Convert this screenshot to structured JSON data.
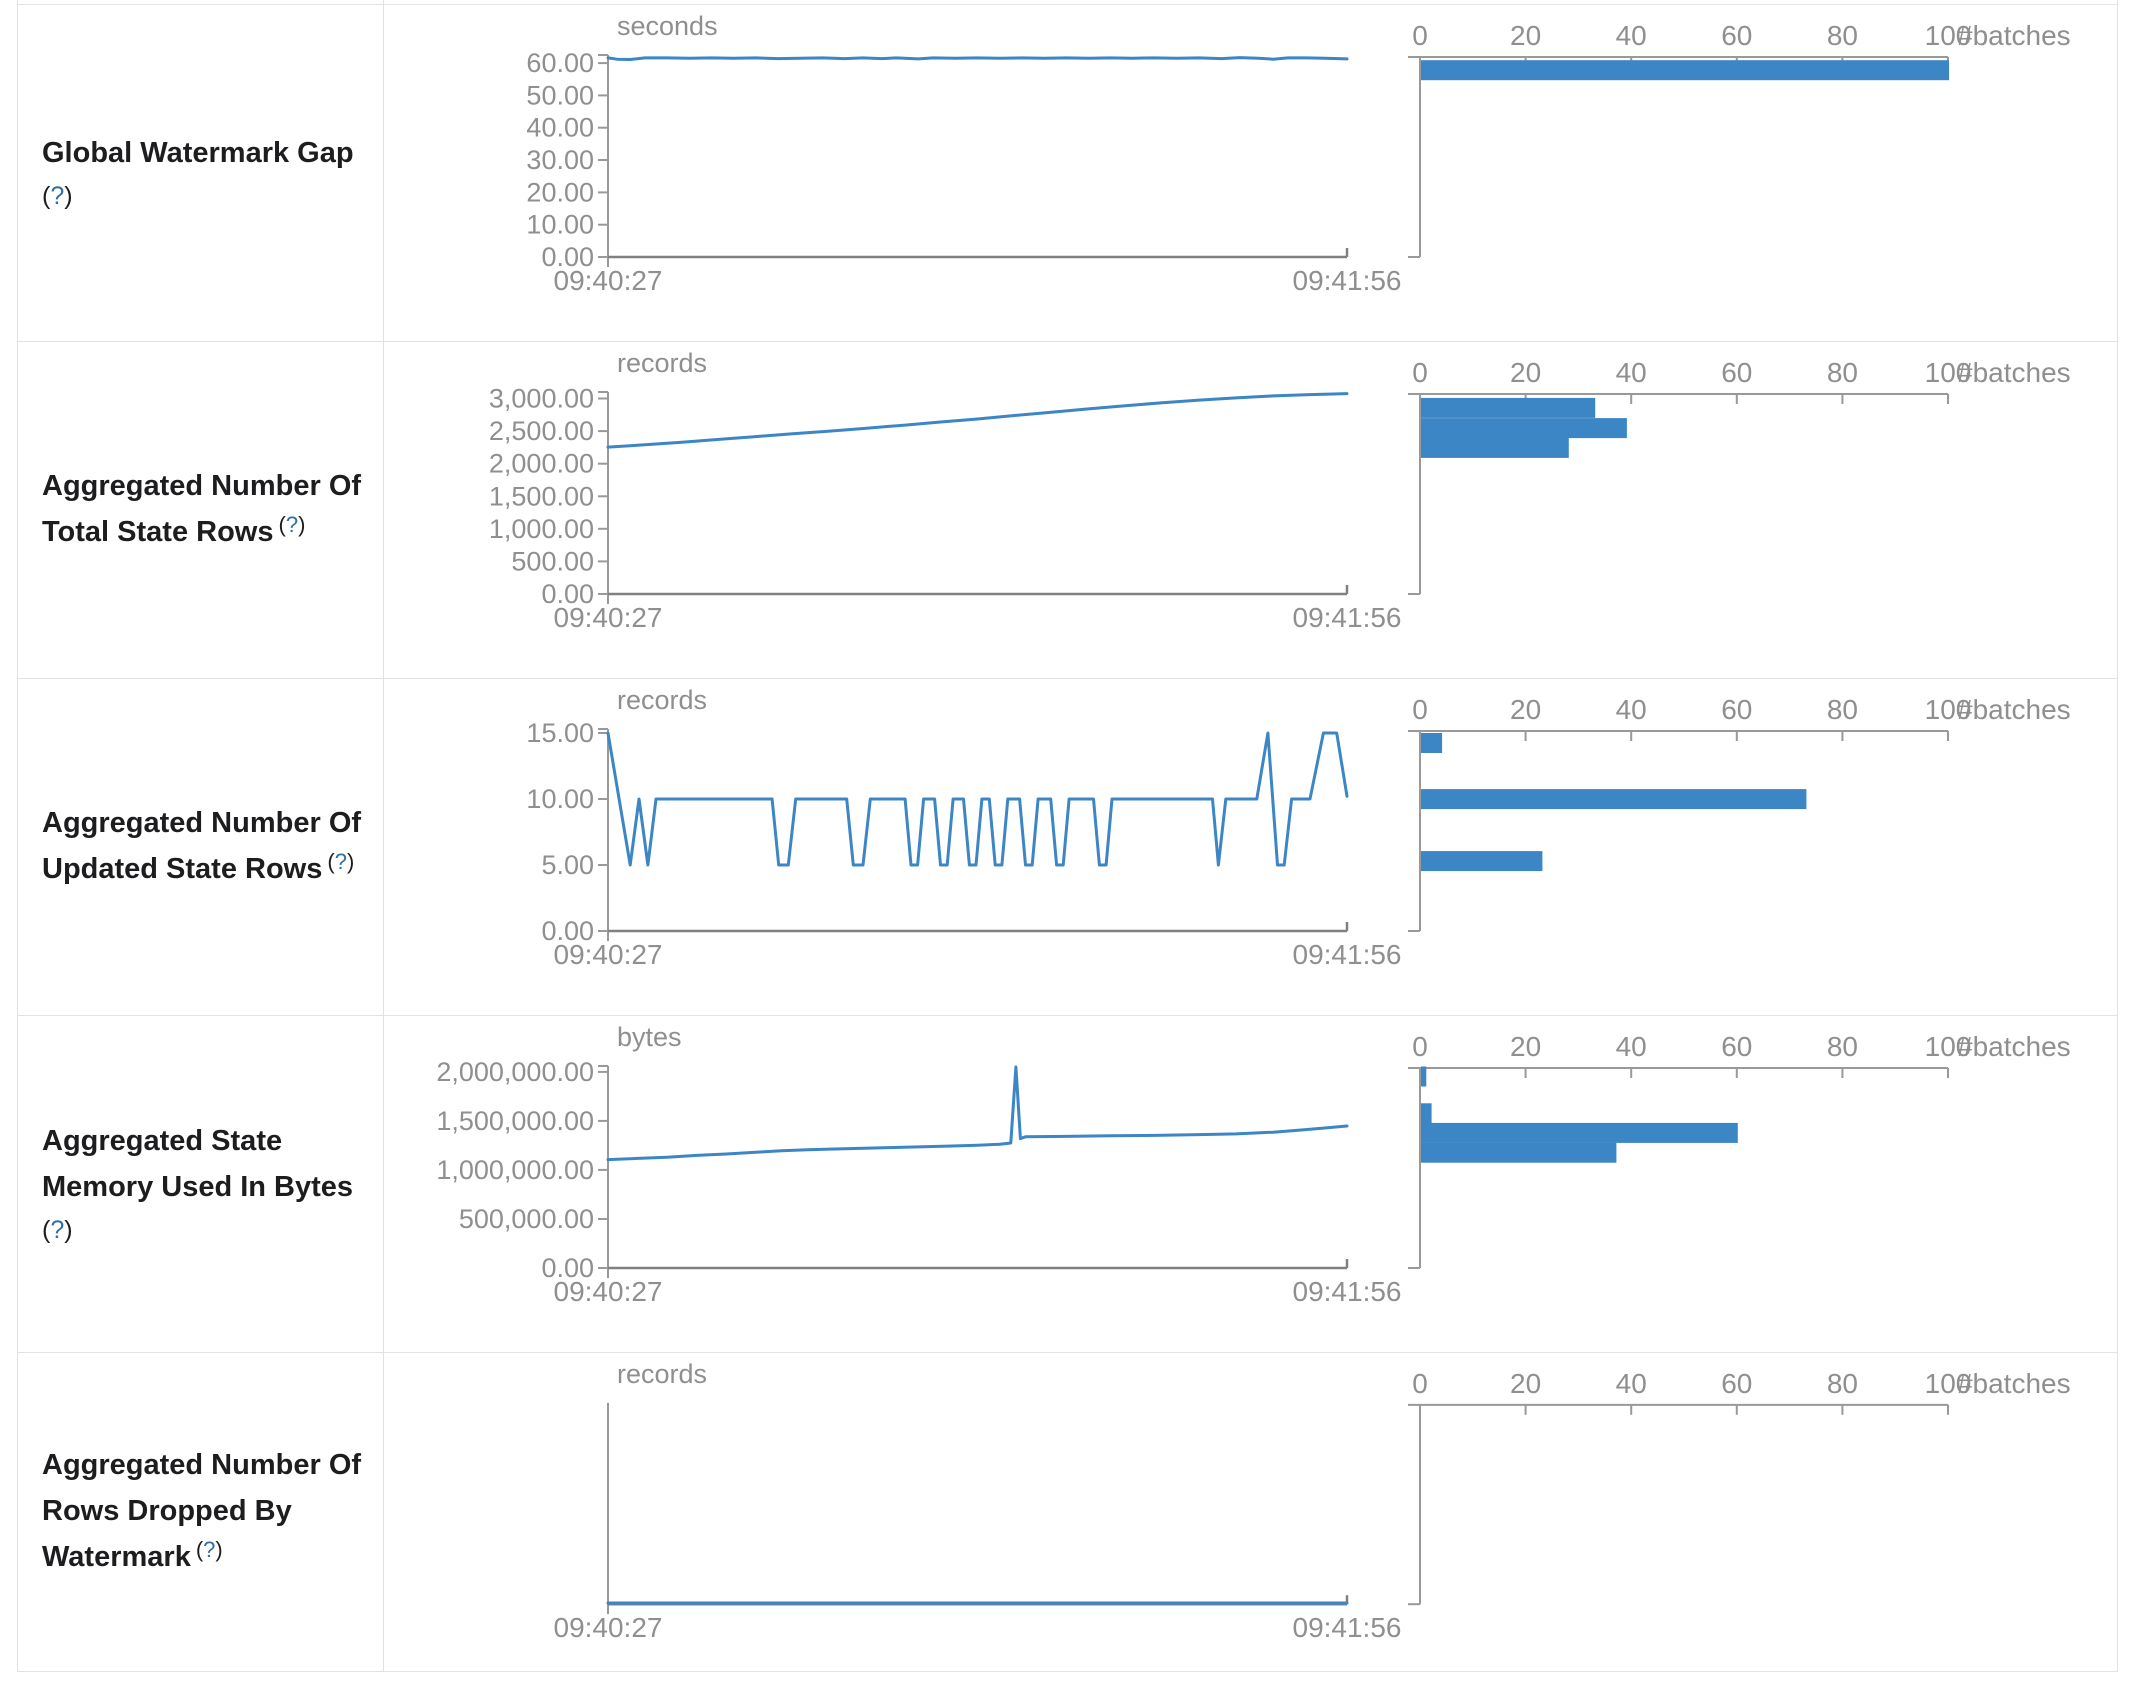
{
  "colors": {
    "series_blue": "#3c86c5",
    "histogram_bar_blue": "#3c86c5",
    "axis_gray": "#999999",
    "baseline_gray": "#808080",
    "tick_text_gray": "#8f8f8f",
    "label_text": "#1d1d1f",
    "help_blue": "#2f6fa7",
    "border_gray": "#dfe2e6"
  },
  "help": {
    "open": "(",
    "q": "?",
    "close": ")"
  },
  "time_axis": {
    "start_label": "09:40:27",
    "end_label": "09:41:56"
  },
  "batches_axis": {
    "tick_labels": [
      "0",
      "20",
      "40",
      "60",
      "80",
      "100"
    ],
    "tick_values": [
      0,
      20,
      40,
      60,
      80,
      100
    ],
    "max": 100,
    "unit_label": "#batches"
  },
  "rows": [
    {
      "id": "global-watermark-gap",
      "label_lines": [
        "Global Watermark Gap"
      ],
      "help_inline": false,
      "unit": "seconds",
      "chart_type": "line",
      "y_axis": {
        "max_draw": 62.5,
        "ticks": [
          {
            "value": 60,
            "label": "60.00"
          },
          {
            "value": 50,
            "label": "50.00"
          },
          {
            "value": 40,
            "label": "40.00"
          },
          {
            "value": 30,
            "label": "30.00"
          },
          {
            "value": 20,
            "label": "20.00"
          },
          {
            "value": 10,
            "label": "10.00"
          },
          {
            "value": 0,
            "label": "0.00"
          }
        ]
      },
      "timeline": [
        [
          0,
          61.6
        ],
        [
          0.012,
          61.2
        ],
        [
          0.03,
          61.1
        ],
        [
          0.05,
          61.6
        ],
        [
          0.08,
          61.6
        ],
        [
          0.11,
          61.5
        ],
        [
          0.14,
          61.6
        ],
        [
          0.17,
          61.5
        ],
        [
          0.2,
          61.6
        ],
        [
          0.23,
          61.4
        ],
        [
          0.26,
          61.5
        ],
        [
          0.29,
          61.6
        ],
        [
          0.32,
          61.4
        ],
        [
          0.345,
          61.6
        ],
        [
          0.37,
          61.4
        ],
        [
          0.39,
          61.6
        ],
        [
          0.42,
          61.3
        ],
        [
          0.44,
          61.6
        ],
        [
          0.47,
          61.5
        ],
        [
          0.5,
          61.6
        ],
        [
          0.53,
          61.5
        ],
        [
          0.56,
          61.6
        ],
        [
          0.59,
          61.5
        ],
        [
          0.62,
          61.6
        ],
        [
          0.65,
          61.5
        ],
        [
          0.68,
          61.6
        ],
        [
          0.71,
          61.5
        ],
        [
          0.74,
          61.6
        ],
        [
          0.77,
          61.5
        ],
        [
          0.8,
          61.6
        ],
        [
          0.83,
          61.4
        ],
        [
          0.855,
          61.7
        ],
        [
          0.88,
          61.5
        ],
        [
          0.9,
          61.2
        ],
        [
          0.92,
          61.6
        ],
        [
          0.945,
          61.6
        ],
        [
          0.97,
          61.5
        ],
        [
          1,
          61.3
        ]
      ],
      "histogram": [
        {
          "count": 100,
          "bin_top_value": 60.9
        }
      ]
    },
    {
      "id": "aggregated-total-state-rows",
      "label_lines": [
        "Aggregated Number Of",
        "Total State Rows"
      ],
      "help_inline": true,
      "unit": "records",
      "chart_type": "line",
      "y_axis": {
        "max_draw": 3100,
        "ticks": [
          {
            "value": 3000,
            "label": "3,000.00"
          },
          {
            "value": 2500,
            "label": "2,500.00"
          },
          {
            "value": 2000,
            "label": "2,000.00"
          },
          {
            "value": 1500,
            "label": "1,500.00"
          },
          {
            "value": 1000,
            "label": "1,000.00"
          },
          {
            "value": 500,
            "label": "500.00"
          },
          {
            "value": 0,
            "label": "0.00"
          }
        ]
      },
      "timeline": [
        [
          0,
          2255
        ],
        [
          0.05,
          2290
        ],
        [
          0.1,
          2330
        ],
        [
          0.15,
          2372
        ],
        [
          0.2,
          2415
        ],
        [
          0.25,
          2458
        ],
        [
          0.3,
          2500
        ],
        [
          0.35,
          2545
        ],
        [
          0.4,
          2590
        ],
        [
          0.45,
          2640
        ],
        [
          0.5,
          2685
        ],
        [
          0.55,
          2740
        ],
        [
          0.6,
          2790
        ],
        [
          0.65,
          2840
        ],
        [
          0.7,
          2890
        ],
        [
          0.75,
          2935
        ],
        [
          0.8,
          2975
        ],
        [
          0.85,
          3010
        ],
        [
          0.9,
          3040
        ],
        [
          0.95,
          3060
        ],
        [
          1,
          3075
        ]
      ],
      "histogram": [
        {
          "count": 33,
          "bin_top_value": 3010
        },
        {
          "count": 39,
          "bin_top_value": 2700
        },
        {
          "count": 28,
          "bin_top_value": 2395
        }
      ]
    },
    {
      "id": "aggregated-updated-state-rows",
      "label_lines": [
        "Aggregated Number Of",
        "Updated State Rows"
      ],
      "help_inline": true,
      "unit": "records",
      "chart_type": "line",
      "y_axis": {
        "max_draw": 15.3,
        "ticks": [
          {
            "value": 15,
            "label": "15.00"
          },
          {
            "value": 10,
            "label": "10.00"
          },
          {
            "value": 5,
            "label": "5.00"
          },
          {
            "value": 0,
            "label": "0.00"
          }
        ]
      },
      "timeline": [
        [
          0,
          15
        ],
        [
          0.03,
          5
        ],
        [
          0.042,
          10
        ],
        [
          0.054,
          5
        ],
        [
          0.065,
          10
        ],
        [
          0.222,
          10
        ],
        [
          0.231,
          5
        ],
        [
          0.244,
          5
        ],
        [
          0.254,
          10
        ],
        [
          0.323,
          10
        ],
        [
          0.332,
          5
        ],
        [
          0.345,
          5
        ],
        [
          0.355,
          10
        ],
        [
          0.402,
          10
        ],
        [
          0.41,
          5
        ],
        [
          0.419,
          5
        ],
        [
          0.427,
          10
        ],
        [
          0.442,
          10
        ],
        [
          0.45,
          5
        ],
        [
          0.459,
          5
        ],
        [
          0.467,
          10
        ],
        [
          0.481,
          10
        ],
        [
          0.489,
          5
        ],
        [
          0.498,
          5
        ],
        [
          0.506,
          10
        ],
        [
          0.516,
          10
        ],
        [
          0.524,
          5
        ],
        [
          0.533,
          5
        ],
        [
          0.541,
          10
        ],
        [
          0.557,
          10
        ],
        [
          0.565,
          5
        ],
        [
          0.574,
          5
        ],
        [
          0.582,
          10
        ],
        [
          0.599,
          10
        ],
        [
          0.607,
          5
        ],
        [
          0.616,
          5
        ],
        [
          0.624,
          10
        ],
        [
          0.657,
          10
        ],
        [
          0.665,
          5
        ],
        [
          0.674,
          5
        ],
        [
          0.682,
          10
        ],
        [
          0.818,
          10
        ],
        [
          0.826,
          5
        ],
        [
          0.836,
          10
        ],
        [
          0.878,
          10
        ],
        [
          0.893,
          15
        ],
        [
          0.906,
          5
        ],
        [
          0.915,
          5
        ],
        [
          0.925,
          10
        ],
        [
          0.95,
          10
        ],
        [
          0.968,
          15
        ],
        [
          0.986,
          15
        ],
        [
          1,
          10.2
        ]
      ],
      "histogram": [
        {
          "count": 4,
          "bin_top_value": 15.0
        },
        {
          "count": 73,
          "bin_top_value": 10.75
        },
        {
          "count": 23,
          "bin_top_value": 6.05
        }
      ]
    },
    {
      "id": "aggregated-state-memory-used-in-bytes",
      "label_lines": [
        "Aggregated State",
        "Memory Used In Bytes"
      ],
      "help_inline": false,
      "unit": "bytes",
      "chart_type": "line",
      "y_axis": {
        "max_draw": 2060000,
        "ticks": [
          {
            "value": 2000000,
            "label": "2,000,000.00"
          },
          {
            "value": 1500000,
            "label": "1,500,000.00"
          },
          {
            "value": 1000000,
            "label": "1,000,000.00"
          },
          {
            "value": 500000,
            "label": "500,000.00"
          },
          {
            "value": 0,
            "label": "0.00"
          }
        ]
      },
      "timeline": [
        [
          0,
          1105000
        ],
        [
          0.04,
          1118000
        ],
        [
          0.08,
          1130000
        ],
        [
          0.12,
          1148000
        ],
        [
          0.16,
          1163000
        ],
        [
          0.2,
          1180000
        ],
        [
          0.235,
          1196000
        ],
        [
          0.27,
          1205000
        ],
        [
          0.3,
          1213000
        ],
        [
          0.34,
          1220000
        ],
        [
          0.38,
          1228000
        ],
        [
          0.42,
          1235000
        ],
        [
          0.46,
          1243000
        ],
        [
          0.5,
          1252000
        ],
        [
          0.53,
          1262000
        ],
        [
          0.545,
          1275000
        ],
        [
          0.552,
          2050000
        ],
        [
          0.558,
          1320000
        ],
        [
          0.565,
          1338000
        ],
        [
          0.62,
          1342000
        ],
        [
          0.68,
          1348000
        ],
        [
          0.74,
          1352000
        ],
        [
          0.8,
          1360000
        ],
        [
          0.85,
          1368000
        ],
        [
          0.9,
          1385000
        ],
        [
          0.94,
          1408000
        ],
        [
          0.97,
          1428000
        ],
        [
          1,
          1448000
        ]
      ],
      "histogram": [
        {
          "count": 1,
          "bin_top_value": 2055000
        },
        {
          "count": 2,
          "bin_top_value": 1680000
        },
        {
          "count": 60,
          "bin_top_value": 1480000
        },
        {
          "count": 37,
          "bin_top_value": 1278000
        }
      ]
    },
    {
      "id": "aggregated-rows-dropped-by-watermark",
      "label_lines": [
        "Aggregated Number Of",
        "Rows Dropped By",
        "Watermark"
      ],
      "help_inline": true,
      "unit": "records",
      "chart_type": "line",
      "y_axis": {
        "max_draw": 1,
        "ticks": []
      },
      "timeline": [
        [
          0,
          0.006
        ],
        [
          1,
          0.006
        ]
      ],
      "histogram": []
    }
  ]
}
